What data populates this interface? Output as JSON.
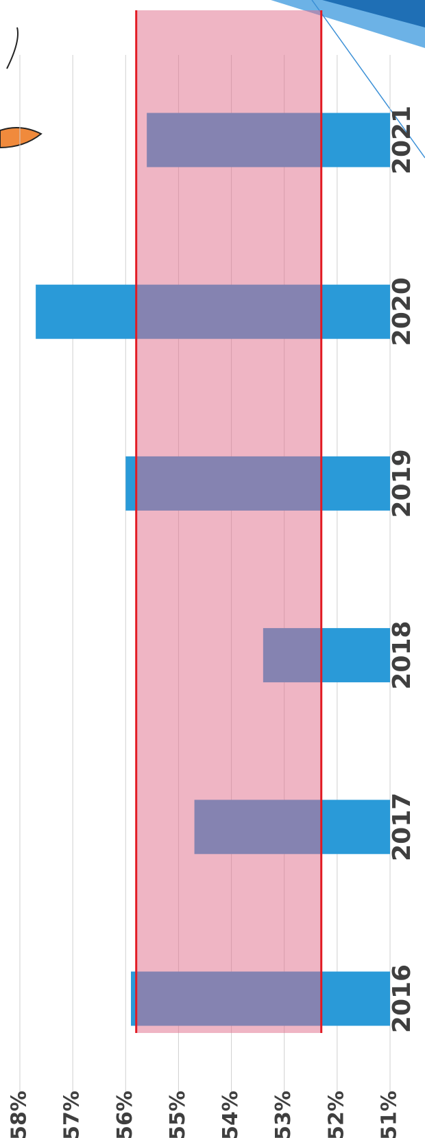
{
  "chart_data": {
    "type": "bar",
    "orientation": "horizontal",
    "categories": [
      "2021",
      "2020",
      "2019",
      "2018",
      "2017",
      "2016"
    ],
    "values": [
      55.6,
      57.7,
      56.0,
      53.4,
      54.7,
      55.9
    ],
    "color": "#2a9ad8",
    "xlim": [
      51,
      58
    ],
    "xticks": [
      {
        "value": 51,
        "label": "51%"
      },
      {
        "value": 52,
        "label": "52%"
      },
      {
        "value": 53,
        "label": "53%"
      },
      {
        "value": 54,
        "label": "54%"
      },
      {
        "value": 55,
        "label": "55%"
      },
      {
        "value": 56,
        "label": "56%"
      },
      {
        "value": 57,
        "label": "57%"
      },
      {
        "value": 58,
        "label": "58%"
      }
    ],
    "grid": true,
    "band": {
      "from": 52.3,
      "to": 55.8,
      "color": "#e06b8a",
      "edge_color": "#e21b23"
    }
  }
}
